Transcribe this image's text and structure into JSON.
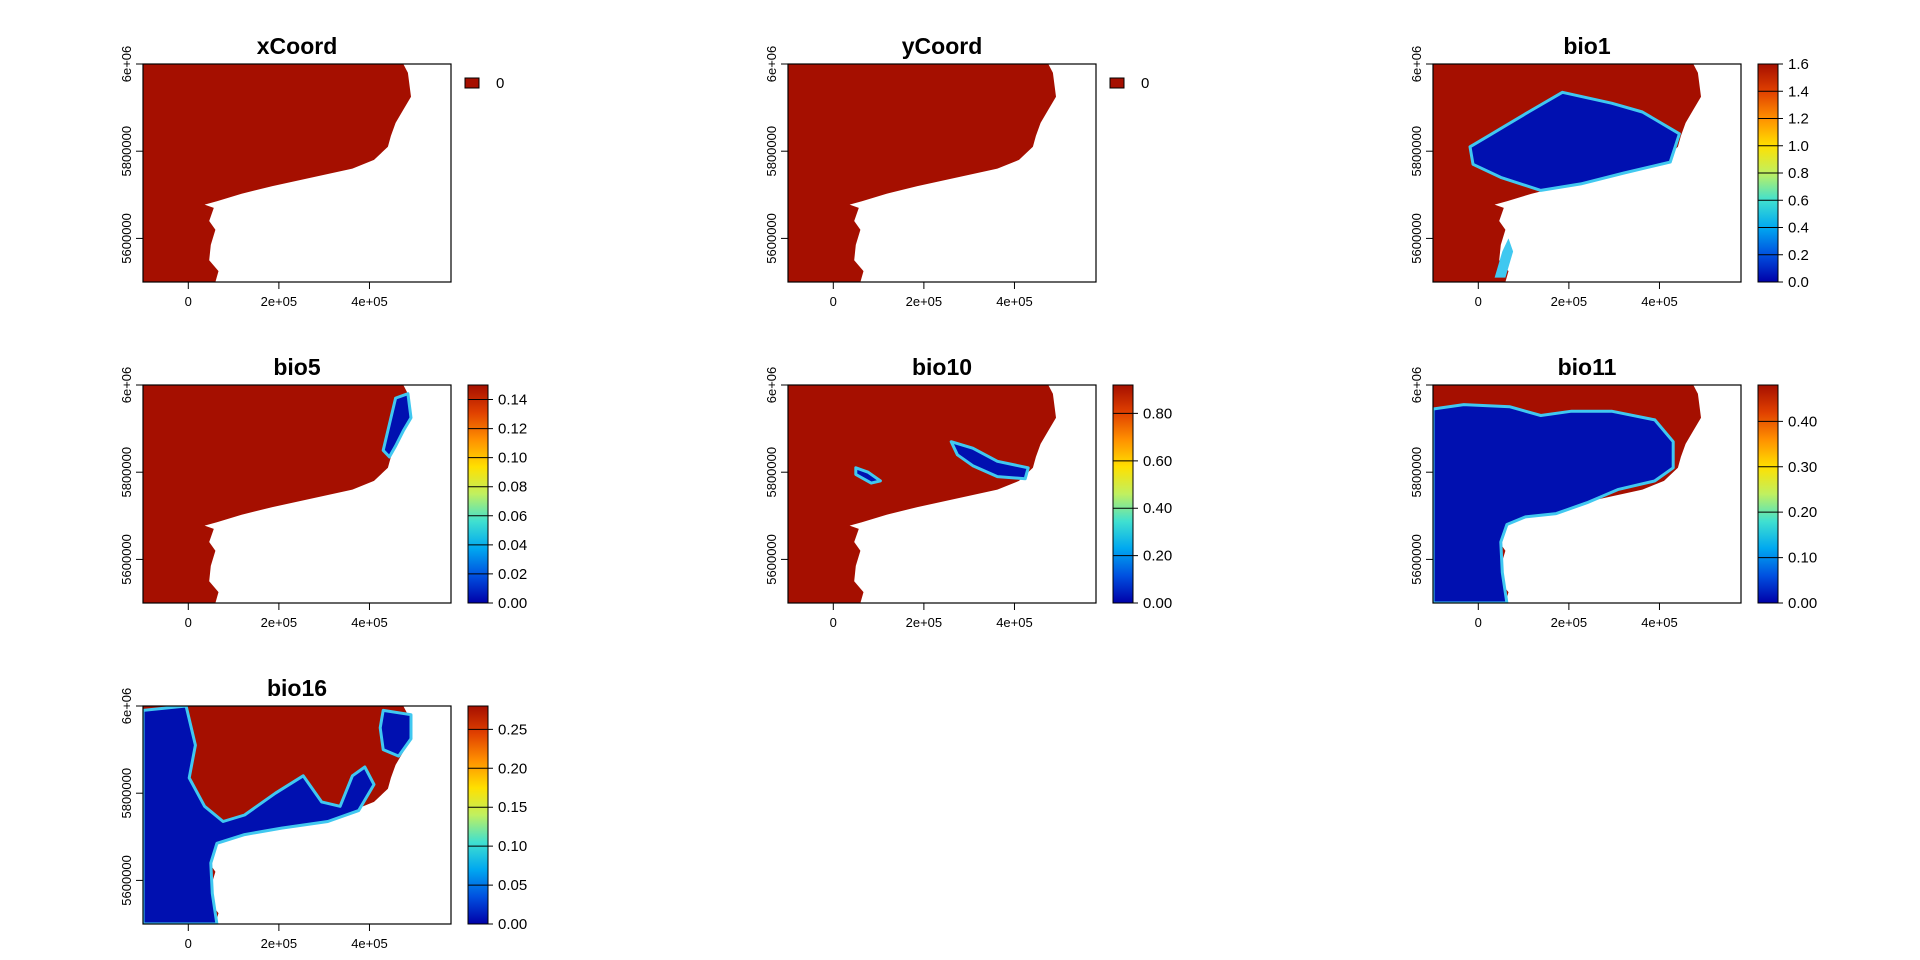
{
  "chart_data": [
    {
      "type": "heatmap",
      "title": "xCoord",
      "xlim": [
        -100000,
        580000
      ],
      "ylim": [
        5500000,
        6000000
      ],
      "x_ticks": [
        {
          "value": 0,
          "label": "0"
        },
        {
          "value": 200000,
          "label": "2e+05"
        },
        {
          "value": 400000,
          "label": "4e+05"
        }
      ],
      "y_ticks": [
        {
          "value": 5600000,
          "label": "5600000"
        },
        {
          "value": 5800000,
          "label": "5800000"
        },
        {
          "value": 6000000,
          "label": "6e+06"
        }
      ],
      "legend": {
        "kind": "categorical",
        "entries": [
          {
            "label": "0",
            "color": "#a50f00"
          }
        ]
      },
      "fill_pattern": "uniform"
    },
    {
      "type": "heatmap",
      "title": "yCoord",
      "xlim": [
        -100000,
        580000
      ],
      "ylim": [
        5500000,
        6000000
      ],
      "x_ticks": [
        {
          "value": 0,
          "label": "0"
        },
        {
          "value": 200000,
          "label": "2e+05"
        },
        {
          "value": 400000,
          "label": "4e+05"
        }
      ],
      "y_ticks": [
        {
          "value": 5600000,
          "label": "5600000"
        },
        {
          "value": 5800000,
          "label": "5800000"
        },
        {
          "value": 6000000,
          "label": "6e+06"
        }
      ],
      "legend": {
        "kind": "categorical",
        "entries": [
          {
            "label": "0",
            "color": "#a50f00"
          }
        ]
      },
      "fill_pattern": "uniform"
    },
    {
      "type": "heatmap",
      "title": "bio1",
      "xlim": [
        -100000,
        580000
      ],
      "ylim": [
        5500000,
        6000000
      ],
      "x_ticks": [
        {
          "value": 0,
          "label": "0"
        },
        {
          "value": 200000,
          "label": "2e+05"
        },
        {
          "value": 400000,
          "label": "4e+05"
        }
      ],
      "y_ticks": [
        {
          "value": 5600000,
          "label": "5600000"
        },
        {
          "value": 5800000,
          "label": "5800000"
        },
        {
          "value": 6000000,
          "label": "6e+06"
        }
      ],
      "legend": {
        "kind": "continuous",
        "range": [
          0,
          1.6
        ],
        "ticks": [
          "0.0",
          "0.2",
          "0.4",
          "0.6",
          "0.8",
          "1.0",
          "1.2",
          "1.4",
          "1.6"
        ]
      },
      "fill_pattern": "low-center-blob"
    },
    {
      "type": "heatmap",
      "title": "bio5",
      "xlim": [
        -100000,
        580000
      ],
      "ylim": [
        5500000,
        6000000
      ],
      "x_ticks": [
        {
          "value": 0,
          "label": "0"
        },
        {
          "value": 200000,
          "label": "2e+05"
        },
        {
          "value": 400000,
          "label": "4e+05"
        }
      ],
      "y_ticks": [
        {
          "value": 5600000,
          "label": "5600000"
        },
        {
          "value": 5800000,
          "label": "5800000"
        },
        {
          "value": 6000000,
          "label": "6e+06"
        }
      ],
      "legend": {
        "kind": "continuous",
        "range": [
          0,
          0.15
        ],
        "ticks": [
          "0.00",
          "0.02",
          "0.04",
          "0.06",
          "0.08",
          "0.10",
          "0.12",
          "0.14"
        ]
      },
      "fill_pattern": "low-east-edge"
    },
    {
      "type": "heatmap",
      "title": "bio10",
      "xlim": [
        -100000,
        580000
      ],
      "ylim": [
        5500000,
        6000000
      ],
      "x_ticks": [
        {
          "value": 0,
          "label": "0"
        },
        {
          "value": 200000,
          "label": "2e+05"
        },
        {
          "value": 400000,
          "label": "4e+05"
        }
      ],
      "y_ticks": [
        {
          "value": 5600000,
          "label": "5600000"
        },
        {
          "value": 5800000,
          "label": "5800000"
        },
        {
          "value": 6000000,
          "label": "6e+06"
        }
      ],
      "legend": {
        "kind": "continuous",
        "range": [
          0,
          0.92
        ],
        "ticks": [
          "0.00",
          "0.20",
          "0.40",
          "0.60",
          "0.80"
        ]
      },
      "fill_pattern": "low-southeast-streak"
    },
    {
      "type": "heatmap",
      "title": "bio11",
      "xlim": [
        -100000,
        580000
      ],
      "ylim": [
        5500000,
        6000000
      ],
      "x_ticks": [
        {
          "value": 0,
          "label": "0"
        },
        {
          "value": 200000,
          "label": "2e+05"
        },
        {
          "value": 400000,
          "label": "4e+05"
        }
      ],
      "y_ticks": [
        {
          "value": 5600000,
          "label": "5600000"
        },
        {
          "value": 5800000,
          "label": "5800000"
        },
        {
          "value": 6000000,
          "label": "6e+06"
        }
      ],
      "legend": {
        "kind": "continuous",
        "range": [
          0,
          0.48
        ],
        "ticks": [
          "0.00",
          "0.10",
          "0.20",
          "0.30",
          "0.40"
        ]
      },
      "fill_pattern": "low-west-large"
    },
    {
      "type": "heatmap",
      "title": "bio16",
      "xlim": [
        -100000,
        580000
      ],
      "ylim": [
        5500000,
        6000000
      ],
      "x_ticks": [
        {
          "value": 0,
          "label": "0"
        },
        {
          "value": 200000,
          "label": "2e+05"
        },
        {
          "value": 400000,
          "label": "4e+05"
        }
      ],
      "y_ticks": [
        {
          "value": 5600000,
          "label": "5600000"
        },
        {
          "value": 5800000,
          "label": "5800000"
        },
        {
          "value": 6000000,
          "label": "6e+06"
        }
      ],
      "legend": {
        "kind": "continuous",
        "range": [
          0,
          0.28
        ],
        "ticks": [
          "0.00",
          "0.05",
          "0.10",
          "0.15",
          "0.20",
          "0.25"
        ]
      },
      "fill_pattern": "low-west-and-east"
    }
  ],
  "colors": {
    "high": "#a50f00",
    "low": "#0010b0",
    "ramp": [
      "#0000a8",
      "#0050e0",
      "#00a8f0",
      "#40e0d0",
      "#c0f060",
      "#ffe000",
      "#ff9000",
      "#e04000",
      "#a50f00"
    ]
  }
}
